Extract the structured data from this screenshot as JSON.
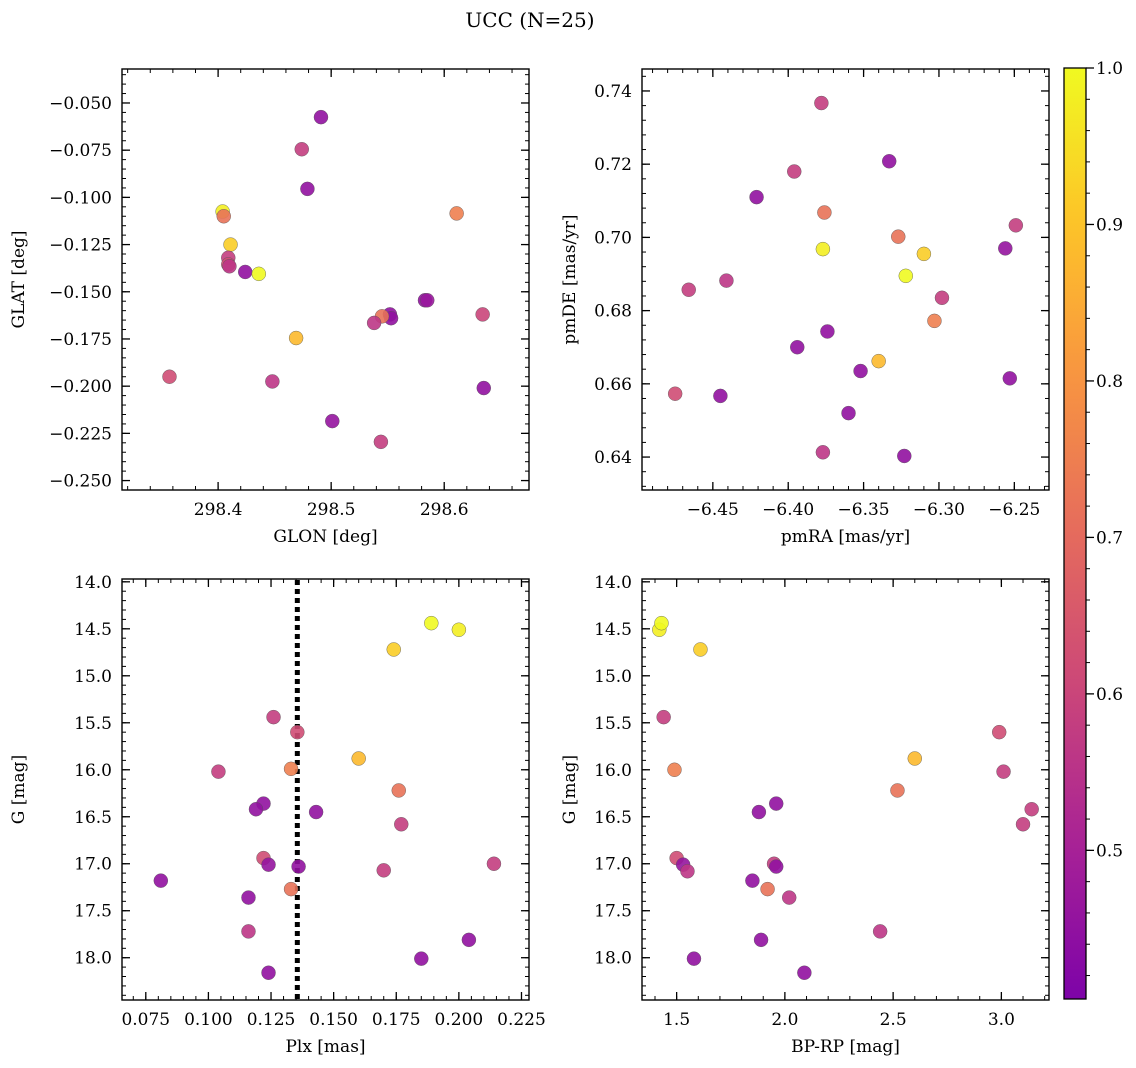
{
  "figure": {
    "title": "UCC (N=25)"
  },
  "colorbar": {
    "ticks": [
      0.5,
      0.6,
      0.7,
      0.8,
      0.9,
      1.0
    ],
    "tick_labels": [
      "0.5",
      "0.6",
      "0.7",
      "0.8",
      "0.9",
      "1.0"
    ],
    "range": [
      0.405,
      1.0
    ],
    "colormap": "plasma"
  },
  "chart_data": [
    {
      "type": "scatter",
      "xlabel": "GLON [deg]",
      "ylabel": "GLAT [deg]",
      "xlim": [
        298.315,
        298.675
      ],
      "ylim": [
        -0.255,
        -0.032
      ],
      "xticks": [
        298.4,
        298.5,
        298.6
      ],
      "xtick_labels": [
        "298.4",
        "298.5",
        "298.6"
      ],
      "yticks": [
        -0.05,
        -0.075,
        -0.1,
        -0.125,
        -0.15,
        -0.175,
        -0.2,
        -0.225,
        -0.25
      ],
      "ytick_labels": [
        "−0.050",
        "−0.075",
        "−0.100",
        "−0.125",
        "−0.150",
        "−0.175",
        "−0.200",
        "−0.225",
        "−0.250"
      ],
      "points": [
        {
          "x": 298.491,
          "y": -0.0575,
          "c": 0.45
        },
        {
          "x": 298.474,
          "y": -0.0745,
          "c": 0.58
        },
        {
          "x": 298.479,
          "y": -0.0955,
          "c": 0.45
        },
        {
          "x": 298.404,
          "y": -0.1075,
          "c": 0.98
        },
        {
          "x": 298.405,
          "y": -0.11,
          "c": 0.72
        },
        {
          "x": 298.611,
          "y": -0.1085,
          "c": 0.75
        },
        {
          "x": 298.411,
          "y": -0.125,
          "c": 0.92
        },
        {
          "x": 298.409,
          "y": -0.132,
          "c": 0.58
        },
        {
          "x": 298.409,
          "y": -0.1355,
          "c": 0.62
        },
        {
          "x": 298.41,
          "y": -0.1365,
          "c": 0.56
        },
        {
          "x": 298.424,
          "y": -0.1395,
          "c": 0.45
        },
        {
          "x": 298.436,
          "y": -0.1405,
          "c": 1.0
        },
        {
          "x": 298.583,
          "y": -0.1545,
          "c": 0.45
        },
        {
          "x": 298.585,
          "y": -0.1545,
          "c": 0.47
        },
        {
          "x": 298.552,
          "y": -0.162,
          "c": 0.45
        },
        {
          "x": 298.553,
          "y": -0.164,
          "c": 0.45
        },
        {
          "x": 298.545,
          "y": -0.163,
          "c": 0.72
        },
        {
          "x": 298.538,
          "y": -0.1665,
          "c": 0.56
        },
        {
          "x": 298.634,
          "y": -0.162,
          "c": 0.6
        },
        {
          "x": 298.469,
          "y": -0.1745,
          "c": 0.88
        },
        {
          "x": 298.357,
          "y": -0.195,
          "c": 0.62
        },
        {
          "x": 298.448,
          "y": -0.1975,
          "c": 0.56
        },
        {
          "x": 298.635,
          "y": -0.201,
          "c": 0.45
        },
        {
          "x": 298.501,
          "y": -0.2185,
          "c": 0.46
        },
        {
          "x": 298.544,
          "y": -0.2295,
          "c": 0.58
        }
      ]
    },
    {
      "type": "scatter",
      "xlabel": "pmRA [mas/yr]",
      "ylabel": "pmDE [mas/yr]",
      "xlim": [
        -6.497,
        -6.227
      ],
      "ylim": [
        0.631,
        0.746
      ],
      "xticks": [
        -6.45,
        -6.4,
        -6.35,
        -6.3,
        -6.25
      ],
      "xtick_labels": [
        "−6.45",
        "−6.40",
        "−6.35",
        "−6.30",
        "−6.25"
      ],
      "yticks": [
        0.64,
        0.66,
        0.68,
        0.7,
        0.72,
        0.74
      ],
      "ytick_labels": [
        "0.64",
        "0.66",
        "0.68",
        "0.70",
        "0.72",
        "0.74"
      ],
      "points": [
        {
          "x": -6.378,
          "y": 0.7367,
          "c": 0.58
        },
        {
          "x": -6.333,
          "y": 0.7208,
          "c": 0.45
        },
        {
          "x": -6.396,
          "y": 0.718,
          "c": 0.58
        },
        {
          "x": -6.421,
          "y": 0.711,
          "c": 0.45
        },
        {
          "x": -6.376,
          "y": 0.7068,
          "c": 0.72
        },
        {
          "x": -6.327,
          "y": 0.7002,
          "c": 0.72
        },
        {
          "x": -6.249,
          "y": 0.7033,
          "c": 0.58
        },
        {
          "x": -6.377,
          "y": 0.6968,
          "c": 0.98
        },
        {
          "x": -6.256,
          "y": 0.697,
          "c": 0.46
        },
        {
          "x": -6.31,
          "y": 0.6955,
          "c": 0.92
        },
        {
          "x": -6.322,
          "y": 0.6895,
          "c": 1.0
        },
        {
          "x": -6.441,
          "y": 0.6882,
          "c": 0.56
        },
        {
          "x": -6.466,
          "y": 0.6857,
          "c": 0.58
        },
        {
          "x": -6.298,
          "y": 0.6835,
          "c": 0.58
        },
        {
          "x": -6.303,
          "y": 0.6772,
          "c": 0.75
        },
        {
          "x": -6.374,
          "y": 0.6743,
          "c": 0.45
        },
        {
          "x": -6.394,
          "y": 0.67,
          "c": 0.45
        },
        {
          "x": -6.34,
          "y": 0.6662,
          "c": 0.88
        },
        {
          "x": -6.352,
          "y": 0.6635,
          "c": 0.45
        },
        {
          "x": -6.253,
          "y": 0.6615,
          "c": 0.45
        },
        {
          "x": -6.475,
          "y": 0.6573,
          "c": 0.62
        },
        {
          "x": -6.445,
          "y": 0.6567,
          "c": 0.45
        },
        {
          "x": -6.36,
          "y": 0.652,
          "c": 0.45
        },
        {
          "x": -6.377,
          "y": 0.6413,
          "c": 0.56
        },
        {
          "x": -6.323,
          "y": 0.6403,
          "c": 0.45
        }
      ]
    },
    {
      "type": "scatter",
      "xlabel": "Plx [mas]",
      "ylabel": "G [mag]",
      "xlim": [
        0.0655,
        0.228
      ],
      "ylim": [
        18.45,
        13.97
      ],
      "y_inverted": true,
      "xticks": [
        0.075,
        0.1,
        0.125,
        0.15,
        0.175,
        0.2,
        0.225
      ],
      "xtick_labels": [
        "0.075",
        "0.100",
        "0.125",
        "0.150",
        "0.175",
        "0.200",
        "0.225"
      ],
      "yticks": [
        14.0,
        14.5,
        15.0,
        15.5,
        16.0,
        16.5,
        17.0,
        17.5,
        18.0
      ],
      "ytick_labels": [
        "14.0",
        "14.5",
        "15.0",
        "15.5",
        "16.0",
        "16.5",
        "17.0",
        "17.5",
        "18.0"
      ],
      "vline": {
        "x": 0.1355,
        "style": "dotted"
      },
      "points": [
        {
          "x": 0.189,
          "y": 14.44,
          "c": 1.0
        },
        {
          "x": 0.2,
          "y": 14.51,
          "c": 0.98
        },
        {
          "x": 0.174,
          "y": 14.72,
          "c": 0.92
        },
        {
          "x": 0.126,
          "y": 15.44,
          "c": 0.58
        },
        {
          "x": 0.1355,
          "y": 15.6,
          "c": 0.62
        },
        {
          "x": 0.16,
          "y": 15.88,
          "c": 0.88
        },
        {
          "x": 0.104,
          "y": 16.02,
          "c": 0.58
        },
        {
          "x": 0.133,
          "y": 15.99,
          "c": 0.75
        },
        {
          "x": 0.176,
          "y": 16.22,
          "c": 0.72
        },
        {
          "x": 0.122,
          "y": 16.36,
          "c": 0.45
        },
        {
          "x": 0.119,
          "y": 16.42,
          "c": 0.45
        },
        {
          "x": 0.143,
          "y": 16.45,
          "c": 0.45
        },
        {
          "x": 0.177,
          "y": 16.58,
          "c": 0.58
        },
        {
          "x": 0.122,
          "y": 16.94,
          "c": 0.62
        },
        {
          "x": 0.124,
          "y": 17.01,
          "c": 0.46
        },
        {
          "x": 0.136,
          "y": 17.03,
          "c": 0.45
        },
        {
          "x": 0.214,
          "y": 17.0,
          "c": 0.58
        },
        {
          "x": 0.17,
          "y": 17.07,
          "c": 0.58
        },
        {
          "x": 0.081,
          "y": 17.18,
          "c": 0.45
        },
        {
          "x": 0.133,
          "y": 17.27,
          "c": 0.72
        },
        {
          "x": 0.116,
          "y": 17.36,
          "c": 0.45
        },
        {
          "x": 0.116,
          "y": 17.72,
          "c": 0.56
        },
        {
          "x": 0.204,
          "y": 17.81,
          "c": 0.45
        },
        {
          "x": 0.185,
          "y": 18.01,
          "c": 0.45
        },
        {
          "x": 0.124,
          "y": 18.16,
          "c": 0.45
        }
      ]
    },
    {
      "type": "scatter",
      "xlabel": "BP-RP [mag]",
      "ylabel": "G [mag]",
      "xlim": [
        1.34,
        3.22
      ],
      "ylim": [
        18.45,
        13.97
      ],
      "y_inverted": true,
      "xticks": [
        1.5,
        2.0,
        2.5,
        3.0
      ],
      "xtick_labels": [
        "1.5",
        "2.0",
        "2.5",
        "3.0"
      ],
      "yticks": [
        14.0,
        14.5,
        15.0,
        15.5,
        16.0,
        16.5,
        17.0,
        17.5,
        18.0
      ],
      "ytick_labels": [
        "14.0",
        "14.5",
        "15.0",
        "15.5",
        "16.0",
        "16.5",
        "17.0",
        "17.5",
        "18.0"
      ],
      "points": [
        {
          "x": 1.42,
          "y": 14.51,
          "c": 0.98
        },
        {
          "x": 1.43,
          "y": 14.44,
          "c": 1.0
        },
        {
          "x": 1.61,
          "y": 14.72,
          "c": 0.92
        },
        {
          "x": 1.44,
          "y": 15.44,
          "c": 0.58
        },
        {
          "x": 2.99,
          "y": 15.6,
          "c": 0.62
        },
        {
          "x": 2.6,
          "y": 15.88,
          "c": 0.88
        },
        {
          "x": 1.49,
          "y": 16.0,
          "c": 0.75
        },
        {
          "x": 3.01,
          "y": 16.02,
          "c": 0.58
        },
        {
          "x": 2.52,
          "y": 16.22,
          "c": 0.72
        },
        {
          "x": 1.96,
          "y": 16.36,
          "c": 0.45
        },
        {
          "x": 1.88,
          "y": 16.45,
          "c": 0.45
        },
        {
          "x": 3.14,
          "y": 16.42,
          "c": 0.58
        },
        {
          "x": 3.1,
          "y": 16.58,
          "c": 0.58
        },
        {
          "x": 1.5,
          "y": 16.94,
          "c": 0.62
        },
        {
          "x": 1.53,
          "y": 17.01,
          "c": 0.46
        },
        {
          "x": 1.55,
          "y": 17.08,
          "c": 0.56
        },
        {
          "x": 1.95,
          "y": 17.0,
          "c": 0.58
        },
        {
          "x": 1.96,
          "y": 17.03,
          "c": 0.45
        },
        {
          "x": 1.85,
          "y": 17.18,
          "c": 0.45
        },
        {
          "x": 1.92,
          "y": 17.27,
          "c": 0.72
        },
        {
          "x": 2.02,
          "y": 17.36,
          "c": 0.56
        },
        {
          "x": 2.44,
          "y": 17.72,
          "c": 0.56
        },
        {
          "x": 1.89,
          "y": 17.81,
          "c": 0.45
        },
        {
          "x": 1.58,
          "y": 18.01,
          "c": 0.45
        },
        {
          "x": 2.09,
          "y": 18.16,
          "c": 0.45
        }
      ]
    }
  ]
}
